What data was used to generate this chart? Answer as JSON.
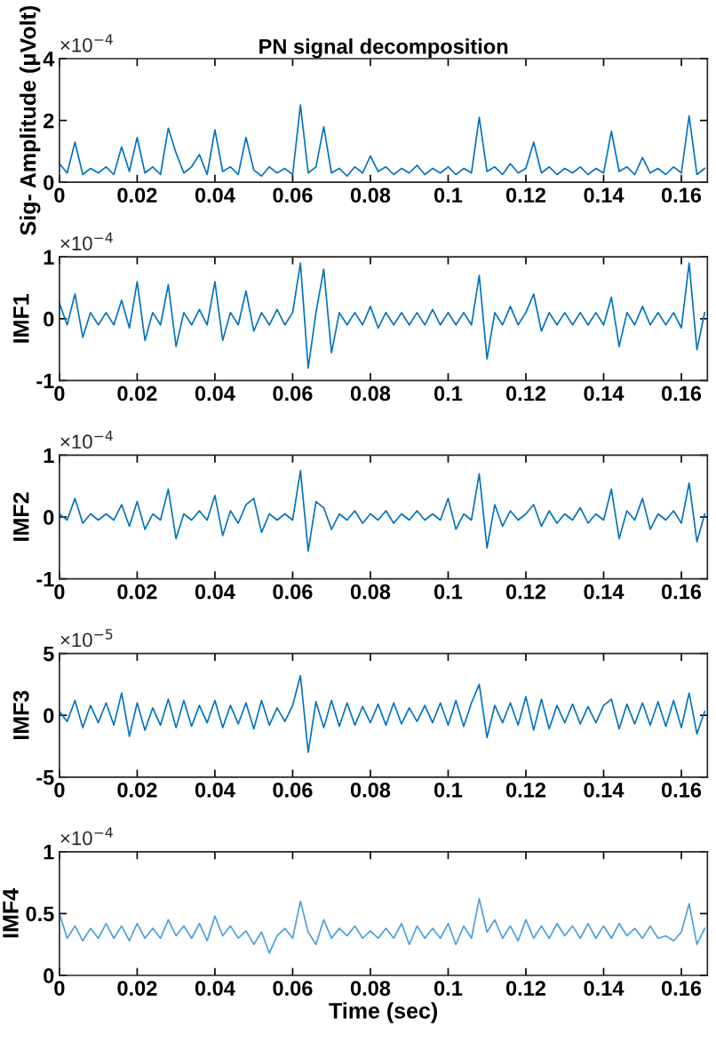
{
  "chart_data": [
    {
      "type": "line",
      "title": "PN signal decomposition",
      "ylabel": "Sig- Amplitude (μVolt)",
      "annotations": [
        "×10$^{−4}$"
      ],
      "x": [
        0,
        0.002,
        0.004,
        0.006,
        0.008,
        0.01,
        0.012,
        0.014,
        0.016,
        0.018,
        0.02,
        0.022,
        0.024,
        0.026,
        0.028,
        0.03,
        0.032,
        0.034,
        0.036,
        0.038,
        0.04,
        0.042,
        0.044,
        0.046,
        0.048,
        0.05,
        0.052,
        0.054,
        0.056,
        0.058,
        0.06,
        0.062,
        0.064,
        0.066,
        0.068,
        0.07,
        0.072,
        0.074,
        0.076,
        0.078,
        0.08,
        0.082,
        0.084,
        0.086,
        0.088,
        0.09,
        0.092,
        0.094,
        0.096,
        0.098,
        0.1,
        0.102,
        0.104,
        0.106,
        0.108,
        0.11,
        0.112,
        0.114,
        0.116,
        0.118,
        0.12,
        0.122,
        0.124,
        0.126,
        0.128,
        0.13,
        0.132,
        0.134,
        0.136,
        0.138,
        0.14,
        0.142,
        0.144,
        0.146,
        0.148,
        0.15,
        0.152,
        0.154,
        0.156,
        0.158,
        0.16,
        0.162,
        0.164,
        0.166
      ],
      "series": [
        {
          "color": "#0072bd",
          "values": [
            0.6,
            0.3,
            1.3,
            0.25,
            0.45,
            0.3,
            0.5,
            0.25,
            1.15,
            0.35,
            1.45,
            0.3,
            0.5,
            0.25,
            1.75,
            0.95,
            0.3,
            0.5,
            0.9,
            0.25,
            1.7,
            0.35,
            0.5,
            0.25,
            1.45,
            0.4,
            0.2,
            0.5,
            0.3,
            0.45,
            0.25,
            2.5,
            0.3,
            0.5,
            1.8,
            0.3,
            0.45,
            0.2,
            0.5,
            0.3,
            0.85,
            0.35,
            0.5,
            0.25,
            0.45,
            0.3,
            0.55,
            0.25,
            0.45,
            0.3,
            0.5,
            0.25,
            0.45,
            0.3,
            2.1,
            0.35,
            0.5,
            0.25,
            0.6,
            0.3,
            0.45,
            1.3,
            0.3,
            0.5,
            0.25,
            0.45,
            0.3,
            0.5,
            0.25,
            0.45,
            0.3,
            1.65,
            0.35,
            0.5,
            0.25,
            0.8,
            0.3,
            0.45,
            0.25,
            0.5,
            0.3,
            2.15,
            0.25,
            0.45
          ]
        }
      ],
      "xlim": [
        0,
        0.1667
      ],
      "xticks": [
        0,
        0.02,
        0.04,
        0.06,
        0.08,
        0.1,
        0.12,
        0.14,
        0.16
      ],
      "ylim": [
        0,
        4
      ],
      "yticks": [
        0,
        2,
        4
      ]
    },
    {
      "type": "line",
      "ylabel": "IMF1",
      "annotations": [
        "×10$^{−4}$"
      ],
      "x": [
        0,
        0.002,
        0.004,
        0.006,
        0.008,
        0.01,
        0.012,
        0.014,
        0.016,
        0.018,
        0.02,
        0.022,
        0.024,
        0.026,
        0.028,
        0.03,
        0.032,
        0.034,
        0.036,
        0.038,
        0.04,
        0.042,
        0.044,
        0.046,
        0.048,
        0.05,
        0.052,
        0.054,
        0.056,
        0.058,
        0.06,
        0.062,
        0.064,
        0.066,
        0.068,
        0.07,
        0.072,
        0.074,
        0.076,
        0.078,
        0.08,
        0.082,
        0.084,
        0.086,
        0.088,
        0.09,
        0.092,
        0.094,
        0.096,
        0.098,
        0.1,
        0.102,
        0.104,
        0.106,
        0.108,
        0.11,
        0.112,
        0.114,
        0.116,
        0.118,
        0.12,
        0.122,
        0.124,
        0.126,
        0.128,
        0.13,
        0.132,
        0.134,
        0.136,
        0.138,
        0.14,
        0.142,
        0.144,
        0.146,
        0.148,
        0.15,
        0.152,
        0.154,
        0.156,
        0.158,
        0.16,
        0.162,
        0.164,
        0.166
      ],
      "series": [
        {
          "color": "#0072bd",
          "values": [
            0.25,
            -0.1,
            0.4,
            -0.3,
            0.1,
            -0.1,
            0.1,
            -0.1,
            0.3,
            -0.15,
            0.6,
            -0.35,
            0.1,
            -0.1,
            0.55,
            -0.45,
            0.1,
            -0.1,
            0.15,
            -0.1,
            0.6,
            -0.35,
            0.1,
            -0.1,
            0.45,
            -0.2,
            0.1,
            -0.1,
            0.15,
            -0.1,
            0.1,
            0.9,
            -0.8,
            0.1,
            0.8,
            -0.55,
            0.1,
            -0.1,
            0.1,
            -0.1,
            0.2,
            -0.15,
            0.1,
            -0.1,
            0.1,
            -0.1,
            0.1,
            -0.1,
            0.15,
            -0.1,
            0.1,
            -0.1,
            0.1,
            -0.1,
            0.7,
            -0.65,
            0.1,
            -0.1,
            0.2,
            -0.1,
            0.1,
            0.4,
            -0.2,
            0.1,
            -0.1,
            0.1,
            -0.1,
            0.1,
            -0.1,
            0.1,
            -0.1,
            0.35,
            -0.45,
            0.1,
            -0.1,
            0.2,
            -0.1,
            0.1,
            -0.1,
            0.1,
            -0.15,
            0.9,
            -0.5,
            0.1
          ]
        }
      ],
      "xlim": [
        0,
        0.1667
      ],
      "xticks": [
        0,
        0.02,
        0.04,
        0.06,
        0.08,
        0.1,
        0.12,
        0.14,
        0.16
      ],
      "ylim": [
        -1,
        1
      ],
      "yticks": [
        -1,
        0,
        1
      ]
    },
    {
      "type": "line",
      "ylabel": "IMF2",
      "annotations": [
        "×10$^{−4}$"
      ],
      "x": [
        0,
        0.002,
        0.004,
        0.006,
        0.008,
        0.01,
        0.012,
        0.014,
        0.016,
        0.018,
        0.02,
        0.022,
        0.024,
        0.026,
        0.028,
        0.03,
        0.032,
        0.034,
        0.036,
        0.038,
        0.04,
        0.042,
        0.044,
        0.046,
        0.048,
        0.05,
        0.052,
        0.054,
        0.056,
        0.058,
        0.06,
        0.062,
        0.064,
        0.066,
        0.068,
        0.07,
        0.072,
        0.074,
        0.076,
        0.078,
        0.08,
        0.082,
        0.084,
        0.086,
        0.088,
        0.09,
        0.092,
        0.094,
        0.096,
        0.098,
        0.1,
        0.102,
        0.104,
        0.106,
        0.108,
        0.11,
        0.112,
        0.114,
        0.116,
        0.118,
        0.12,
        0.122,
        0.124,
        0.126,
        0.128,
        0.13,
        0.132,
        0.134,
        0.136,
        0.138,
        0.14,
        0.142,
        0.144,
        0.146,
        0.148,
        0.15,
        0.152,
        0.154,
        0.156,
        0.158,
        0.16,
        0.162,
        0.164,
        0.166
      ],
      "series": [
        {
          "color": "#0072bd",
          "values": [
            0.05,
            -0.05,
            0.3,
            -0.1,
            0.05,
            -0.05,
            0.05,
            -0.05,
            0.2,
            -0.15,
            0.25,
            -0.2,
            0.05,
            -0.05,
            0.45,
            -0.35,
            0.05,
            -0.05,
            0.1,
            -0.05,
            0.35,
            -0.3,
            0.1,
            -0.1,
            0.2,
            0.3,
            -0.25,
            0.05,
            -0.05,
            0.05,
            -0.05,
            0.75,
            -0.55,
            0.25,
            0.15,
            -0.2,
            0.05,
            -0.05,
            0.1,
            -0.1,
            0.05,
            -0.05,
            0.1,
            -0.1,
            0.05,
            -0.05,
            0.1,
            -0.05,
            0.05,
            -0.05,
            0.3,
            -0.2,
            0.05,
            -0.05,
            0.7,
            -0.5,
            0.2,
            -0.15,
            0.1,
            -0.05,
            0.05,
            0.2,
            -0.15,
            0.1,
            -0.1,
            0.05,
            -0.05,
            0.15,
            -0.1,
            0.05,
            -0.05,
            0.45,
            -0.35,
            0.1,
            -0.05,
            0.3,
            -0.2,
            0.05,
            -0.05,
            0.1,
            -0.1,
            0.55,
            -0.4,
            0.05
          ]
        }
      ],
      "xlim": [
        0,
        0.1667
      ],
      "xticks": [
        0,
        0.02,
        0.04,
        0.06,
        0.08,
        0.1,
        0.12,
        0.14,
        0.16
      ],
      "ylim": [
        -1,
        1
      ],
      "yticks": [
        -1,
        0,
        1
      ]
    },
    {
      "type": "line",
      "ylabel": "IMF3",
      "annotations": [
        "×10$^{−5}$"
      ],
      "x": [
        0,
        0.002,
        0.004,
        0.006,
        0.008,
        0.01,
        0.012,
        0.014,
        0.016,
        0.018,
        0.02,
        0.022,
        0.024,
        0.026,
        0.028,
        0.03,
        0.032,
        0.034,
        0.036,
        0.038,
        0.04,
        0.042,
        0.044,
        0.046,
        0.048,
        0.05,
        0.052,
        0.054,
        0.056,
        0.058,
        0.06,
        0.062,
        0.064,
        0.066,
        0.068,
        0.07,
        0.072,
        0.074,
        0.076,
        0.078,
        0.08,
        0.082,
        0.084,
        0.086,
        0.088,
        0.09,
        0.092,
        0.094,
        0.096,
        0.098,
        0.1,
        0.102,
        0.104,
        0.106,
        0.108,
        0.11,
        0.112,
        0.114,
        0.116,
        0.118,
        0.12,
        0.122,
        0.124,
        0.126,
        0.128,
        0.13,
        0.132,
        0.134,
        0.136,
        0.138,
        0.14,
        0.142,
        0.144,
        0.146,
        0.148,
        0.15,
        0.152,
        0.154,
        0.156,
        0.158,
        0.16,
        0.162,
        0.164,
        0.166
      ],
      "series": [
        {
          "color": "#0072bd",
          "values": [
            0.3,
            -0.5,
            1.2,
            -1,
            0.8,
            -0.6,
            1,
            -0.8,
            1.8,
            -1.7,
            1,
            -1.2,
            0.6,
            -0.8,
            1.3,
            -1,
            1.2,
            -0.9,
            0.8,
            -0.6,
            1.2,
            -1,
            0.8,
            -0.7,
            1,
            -1.1,
            1.2,
            -0.8,
            0.6,
            -0.5,
            0.8,
            3.2,
            -3,
            1.1,
            -1,
            1.2,
            -0.9,
            1,
            -0.8,
            0.7,
            -0.6,
            0.9,
            -0.8,
            1,
            -0.7,
            0.6,
            -0.5,
            0.8,
            -0.6,
            1,
            -0.8,
            1.2,
            -0.9,
            1,
            2.5,
            -1.8,
            0.8,
            -0.6,
            1,
            -0.8,
            1.5,
            -1.2,
            1.3,
            -1.1,
            0.8,
            -0.6,
            0.9,
            -0.7,
            0.7,
            -0.6,
            0.8,
            1.3,
            -1.1,
            0.9,
            -0.7,
            1,
            -0.8,
            1.1,
            -0.9,
            1.2,
            -1,
            1.8,
            -1.5,
            0.3
          ]
        }
      ],
      "xlim": [
        0,
        0.1667
      ],
      "xticks": [
        0,
        0.02,
        0.04,
        0.06,
        0.08,
        0.1,
        0.12,
        0.14,
        0.16
      ],
      "ylim": [
        -5,
        5
      ],
      "yticks": [
        -5,
        0,
        5
      ]
    },
    {
      "type": "line",
      "xlabel": "Time (sec)",
      "ylabel": "IMF4",
      "annotations": [
        "×10$^{−4}$"
      ],
      "x": [
        0,
        0.002,
        0.004,
        0.006,
        0.008,
        0.01,
        0.012,
        0.014,
        0.016,
        0.018,
        0.02,
        0.022,
        0.024,
        0.026,
        0.028,
        0.03,
        0.032,
        0.034,
        0.036,
        0.038,
        0.04,
        0.042,
        0.044,
        0.046,
        0.048,
        0.05,
        0.052,
        0.054,
        0.056,
        0.058,
        0.06,
        0.062,
        0.064,
        0.066,
        0.068,
        0.07,
        0.072,
        0.074,
        0.076,
        0.078,
        0.08,
        0.082,
        0.084,
        0.086,
        0.088,
        0.09,
        0.092,
        0.094,
        0.096,
        0.098,
        0.1,
        0.102,
        0.104,
        0.106,
        0.108,
        0.11,
        0.112,
        0.114,
        0.116,
        0.118,
        0.12,
        0.122,
        0.124,
        0.126,
        0.128,
        0.13,
        0.132,
        0.134,
        0.136,
        0.138,
        0.14,
        0.142,
        0.144,
        0.146,
        0.148,
        0.15,
        0.152,
        0.154,
        0.156,
        0.158,
        0.16,
        0.162,
        0.164,
        0.166
      ],
      "series": [
        {
          "color": "#4a9fdb",
          "values": [
            0.5,
            0.3,
            0.4,
            0.28,
            0.38,
            0.3,
            0.42,
            0.3,
            0.4,
            0.28,
            0.42,
            0.3,
            0.38,
            0.3,
            0.45,
            0.32,
            0.4,
            0.3,
            0.42,
            0.28,
            0.48,
            0.32,
            0.4,
            0.3,
            0.36,
            0.25,
            0.35,
            0.18,
            0.32,
            0.38,
            0.3,
            0.6,
            0.35,
            0.25,
            0.45,
            0.3,
            0.38,
            0.32,
            0.4,
            0.3,
            0.36,
            0.3,
            0.38,
            0.3,
            0.42,
            0.25,
            0.4,
            0.3,
            0.38,
            0.3,
            0.42,
            0.25,
            0.4,
            0.3,
            0.62,
            0.35,
            0.45,
            0.3,
            0.4,
            0.28,
            0.45,
            0.3,
            0.4,
            0.3,
            0.42,
            0.32,
            0.4,
            0.3,
            0.42,
            0.3,
            0.4,
            0.3,
            0.42,
            0.32,
            0.38,
            0.3,
            0.4,
            0.3,
            0.32,
            0.28,
            0.35,
            0.58,
            0.25,
            0.38
          ]
        }
      ],
      "xlim": [
        0,
        0.1667
      ],
      "xticks": [
        0,
        0.02,
        0.04,
        0.06,
        0.08,
        0.1,
        0.12,
        0.14,
        0.16
      ],
      "ylim": [
        0,
        1
      ],
      "yticks": [
        0,
        0.5,
        1
      ]
    }
  ]
}
